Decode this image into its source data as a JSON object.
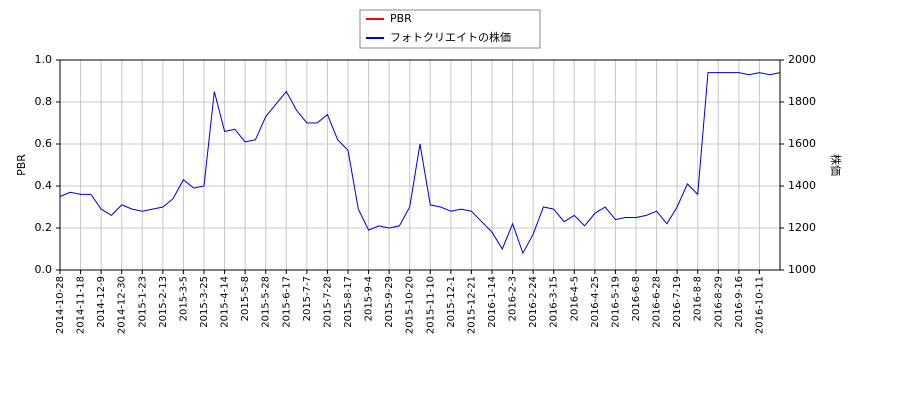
{
  "chart_data": {
    "type": "line",
    "x_label_left": "PBR",
    "y2_label": "株価",
    "categories": [
      "2014-10-28",
      null,
      "2014-11-18",
      null,
      "2014-12-9",
      null,
      "2014-12-30",
      null,
      "2015-1-23",
      null,
      "2015-2-13",
      null,
      "2015-3-5",
      null,
      "2015-3-25",
      null,
      "2015-4-14",
      null,
      "2015-5-8",
      null,
      "2015-5-28",
      null,
      "2015-6-17",
      null,
      "2015-7-7",
      null,
      "2015-7-28",
      null,
      "2015-8-17",
      null,
      "2015-9-4",
      null,
      "2015-9-29",
      null,
      "2015-10-20",
      null,
      "2015-11-10",
      null,
      "2015-12-1",
      null,
      "2015-12-21",
      null,
      "2016-1-14",
      null,
      "2016-2-3",
      null,
      "2016-2-24",
      null,
      "2016-3-15",
      null,
      "2016-4-5",
      null,
      "2016-4-25",
      null,
      "2016-5-19",
      null,
      "2016-6-8",
      null,
      "2016-6-28",
      null,
      "2016-7-19",
      null,
      "2016-8-8",
      null,
      "2016-8-29",
      null,
      "2016-9-16",
      null,
      "2016-10-11",
      null,
      null
    ],
    "series": [
      {
        "name": "PBR",
        "color": "#ff0000",
        "values": [
          null,
          null,
          null,
          null,
          null,
          null,
          null,
          null,
          null,
          null,
          null,
          null,
          null,
          null,
          null,
          null,
          null,
          null,
          null,
          null,
          null,
          null,
          null,
          null,
          null,
          null,
          null,
          null,
          null,
          null,
          null,
          null,
          null,
          null,
          null,
          null,
          null,
          null,
          null,
          null,
          null,
          null,
          null,
          null,
          null,
          null,
          null,
          null,
          null,
          null,
          null,
          null,
          null,
          null,
          null,
          null,
          null,
          null,
          null,
          null,
          null,
          null,
          null,
          null,
          null,
          null,
          null,
          null,
          null,
          null,
          null
        ]
      },
      {
        "name": "フォトクリエイトの株価",
        "color": "#0000cc",
        "axis": "y2",
        "values": [
          1350,
          1370,
          1360,
          1360,
          1290,
          1260,
          1310,
          1290,
          1280,
          1290,
          1300,
          1340,
          1430,
          1390,
          1400,
          1850,
          1660,
          1670,
          1610,
          1620,
          1730,
          1790,
          1850,
          1760,
          1700,
          1700,
          1740,
          1620,
          1570,
          1290,
          1190,
          1210,
          1200,
          1210,
          1300,
          1600,
          1310,
          1300,
          1280,
          1290,
          1280,
          1230,
          1180,
          1100,
          1220,
          1080,
          1170,
          1300,
          1290,
          1230,
          1260,
          1210,
          1270,
          1300,
          1240,
          1250,
          1250,
          1260,
          1280,
          1220,
          1300,
          1410,
          1360,
          1940,
          1940,
          1940,
          1940,
          1930,
          1940,
          1930,
          1940
        ]
      }
    ],
    "ylim": [
      0,
      1
    ],
    "yticks": [
      {
        "value": 0,
        "label": "0.0"
      },
      0.2,
      0.4,
      0.6,
      0.8,
      {
        "value": 1,
        "label": "1.0"
      }
    ],
    "y2lim": [
      1000,
      2000
    ],
    "y2ticks": [
      1000,
      1200,
      1400,
      1600,
      1800,
      2000
    ],
    "grid": true,
    "legend": "top"
  }
}
